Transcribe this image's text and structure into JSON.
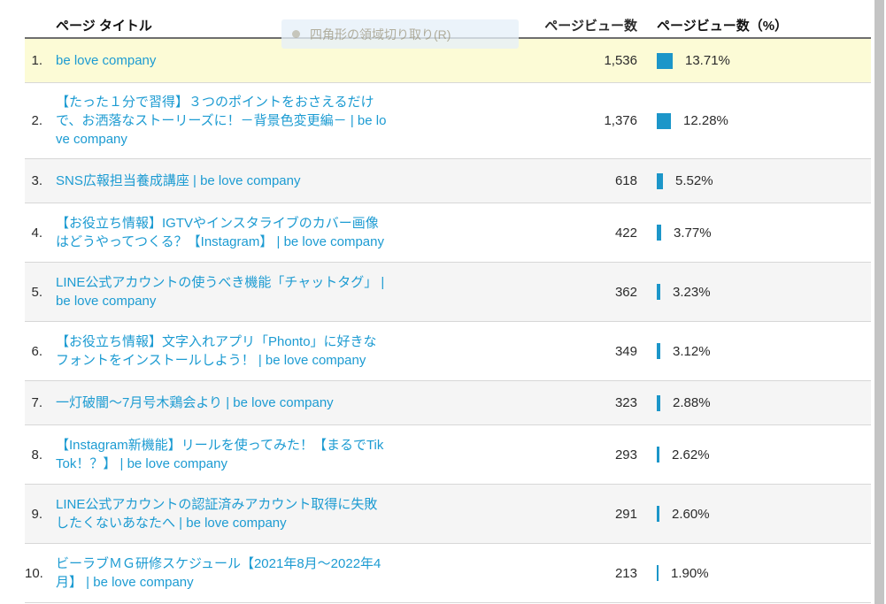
{
  "table": {
    "headers": {
      "page_title": "ページ タイトル",
      "pageviews": "ページビュー数",
      "pageviews_pct": "ページビュー数（%）"
    },
    "rows": [
      {
        "rank": "1.",
        "title_lines": [
          "be love company"
        ],
        "views": "1,536",
        "pct_label": "13.71%",
        "pct_value": 13.71,
        "highlighted": true
      },
      {
        "rank": "2.",
        "title_lines": [
          "【たった１分で習得】３つのポイントをおさえるだけ",
          "で、お洒落なストーリーズに！－背景色変更編－ | be lo",
          "ve company"
        ],
        "views": "1,376",
        "pct_label": "12.28%",
        "pct_value": 12.28
      },
      {
        "rank": "3.",
        "title_lines": [
          "SNS広報担当養成講座 | be love company"
        ],
        "views": "618",
        "pct_label": "5.52%",
        "pct_value": 5.52
      },
      {
        "rank": "4.",
        "title_lines": [
          "【お役立ち情報】IGTVやインスタライブのカバー画像",
          "はどうやってつくる？【Instagram】 | be love company"
        ],
        "views": "422",
        "pct_label": "3.77%",
        "pct_value": 3.77
      },
      {
        "rank": "5.",
        "title_lines": [
          "LINE公式アカウントの使うべき機能「チャットタグ」 |",
          "be love company"
        ],
        "views": "362",
        "pct_label": "3.23%",
        "pct_value": 3.23
      },
      {
        "rank": "6.",
        "title_lines": [
          "【お役立ち情報】文字入れアプリ「Phonto」に好きな",
          "フォントをインストールしよう！ | be love company"
        ],
        "views": "349",
        "pct_label": "3.12%",
        "pct_value": 3.12
      },
      {
        "rank": "7.",
        "title_lines": [
          "一灯破闇～7月号木鶏会より | be love company"
        ],
        "views": "323",
        "pct_label": "2.88%",
        "pct_value": 2.88
      },
      {
        "rank": "8.",
        "title_lines": [
          "【Instagram新機能】リールを使ってみた！【まるでTik",
          "Tok！？】 | be love company"
        ],
        "views": "293",
        "pct_label": "2.62%",
        "pct_value": 2.62
      },
      {
        "rank": "9.",
        "title_lines": [
          "LINE公式アカウントの認証済みアカウント取得に失敗",
          "したくないあなたへ | be love company"
        ],
        "views": "291",
        "pct_label": "2.60%",
        "pct_value": 2.6
      },
      {
        "rank": "10.",
        "title_lines": [
          "ビーラブＭＧ研修スケジュール【2021年8月～2022年4",
          "月】 | be love company"
        ],
        "views": "213",
        "pct_label": "1.90%",
        "pct_value": 1.9
      }
    ]
  },
  "overlay_tooltip": {
    "label": "四角形の領域切り取り(R)",
    "icon": "record-dot-icon"
  },
  "colors": {
    "link_blue": "#1c9bd2",
    "bar_blue": "#1c96c9",
    "highlight_yellow": "#fcfbd6",
    "zebra_gray": "#f5f5f5"
  }
}
